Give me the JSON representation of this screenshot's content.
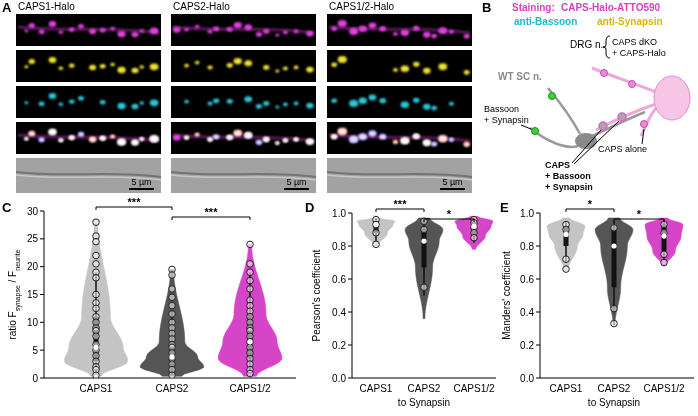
{
  "panel_a": {
    "label": "A",
    "columns": [
      "CAPS1-Halo",
      "CAPS2-Halo",
      "CAPS1/2-Halo"
    ],
    "scale_bar": "5 µm"
  },
  "panel_b": {
    "label": "B",
    "staining_title": "Staining:",
    "stains": [
      "CAPS-Halo-ATTO590",
      "anti-Bassoon",
      "anti-Synapsin"
    ],
    "drg": "DRG n.",
    "drg_desc": [
      "CAPS dKO",
      "+ CAPS-Halo"
    ],
    "wt": "WT SC n.",
    "label_bs": [
      "Bassoon",
      "+ Synapsin"
    ],
    "label_caps_alone": "CAPS alone",
    "label_all": [
      "CAPS",
      "+ Bassoon",
      "+ Synapsin"
    ]
  },
  "chart_data": [
    {
      "type": "violin",
      "title": "C",
      "y_label": [
        {
          "text": "ratio F"
        },
        {
          "text": "synapse",
          "sub": true
        },
        {
          "text": " / F"
        },
        {
          "text": "neurite",
          "sub": true
        }
      ],
      "ylim": [
        0,
        30
      ],
      "yticks": [
        0,
        5,
        10,
        15,
        20,
        25,
        30
      ],
      "series": [
        {
          "name": "CAPS1",
          "color": "#c4c4c4",
          "min": 0.3,
          "q1": 3,
          "median": 5.5,
          "q3": 11,
          "max": 28.5,
          "whisker": [
            0.8,
            19
          ],
          "density": [
            0.15,
            1,
            0.85,
            0.45,
            0.05
          ],
          "points": [
            28,
            25.5,
            24.5,
            22,
            20.5,
            19,
            18,
            15,
            13.5,
            12.5,
            11,
            10,
            9,
            8.5,
            7.5,
            6,
            5,
            4,
            3,
            2,
            1.5,
            0.5
          ]
        },
        {
          "name": "CAPS2",
          "color": "#555555",
          "min": 0.3,
          "q1": 2,
          "median": 3.8,
          "q3": 6.5,
          "max": 19.5,
          "whisker": [
            0.5,
            12
          ],
          "density": [
            0.3,
            1,
            0.8,
            0.4,
            0.05
          ],
          "points": [
            19.5,
            18.5,
            16,
            14.5,
            13,
            11.5,
            10,
            9,
            8,
            7,
            6,
            5.5,
            4.5,
            3.5,
            2.5,
            1.5,
            0.5
          ]
        },
        {
          "name": "CAPS1/2",
          "color": "#d645c8",
          "min": 0.3,
          "q1": 3.5,
          "median": 6.5,
          "q3": 11.5,
          "max": 24,
          "whisker": [
            0.8,
            19
          ],
          "density": [
            0.2,
            1,
            0.85,
            0.5,
            0.05
          ],
          "points": [
            24,
            20.5,
            19,
            17.5,
            16,
            14,
            13,
            12,
            11,
            10,
            9,
            8.5,
            7.5,
            6.5,
            5.5,
            4.5,
            3.5,
            2.5,
            1.5,
            0.8
          ]
        }
      ],
      "comparisons": [
        {
          "pair": [
            "CAPS1",
            "CAPS2"
          ],
          "label": "***"
        },
        {
          "pair": [
            "CAPS2",
            "CAPS1/2"
          ],
          "label": "***"
        }
      ]
    },
    {
      "type": "violin",
      "title": "D",
      "y_label": "Pearson's coefficient",
      "x_label": "to Synapsin",
      "ylim": [
        0,
        1
      ],
      "yticks": [
        {
          "value": 0,
          "label": "0.0"
        },
        0.2,
        0.4,
        0.6,
        0.8,
        {
          "value": 1,
          "label": "1.0"
        }
      ],
      "series": [
        {
          "name": "CAPS1",
          "color": "#c4c4c4",
          "min": 0.8,
          "q1": 0.88,
          "median": 0.93,
          "q3": 0.95,
          "max": 0.97,
          "whisker": [
            0.83,
            0.97
          ],
          "density": [
            0.1,
            0.6,
            0.9,
            1,
            0.2
          ],
          "points": [
            0.96,
            0.93,
            0.88,
            0.81
          ]
        },
        {
          "name": "CAPS2",
          "color": "#555555",
          "min": 0.36,
          "q1": 0.67,
          "median": 0.83,
          "q3": 0.9,
          "max": 0.97,
          "whisker": [
            0.5,
            0.96
          ],
          "density": [
            0.05,
            0.45,
            0.8,
            1,
            0.3
          ],
          "points": [
            0.95,
            0.9,
            0.55
          ]
        },
        {
          "name": "CAPS1/2",
          "color": "#d645c8",
          "min": 0.78,
          "q1": 0.86,
          "median": 0.92,
          "q3": 0.95,
          "max": 0.98,
          "whisker": [
            0.82,
            0.97
          ],
          "density": [
            0.1,
            0.6,
            0.9,
            1,
            0.2
          ],
          "points": [
            0.96,
            0.94,
            0.91,
            0.88,
            0.85
          ]
        }
      ],
      "comparisons": [
        {
          "pair": [
            "CAPS1",
            "CAPS2"
          ],
          "label": "***"
        },
        {
          "pair": [
            "CAPS2",
            "CAPS1/2"
          ],
          "label": "*"
        }
      ]
    },
    {
      "type": "violin",
      "title": "E",
      "y_label": "Manders' coefficient",
      "x_label": "to Synapsin",
      "ylim": [
        0,
        1
      ],
      "yticks": [
        {
          "value": 0,
          "label": "0.0"
        },
        0.2,
        0.4,
        0.6,
        0.8,
        {
          "value": 1,
          "label": "1.0"
        }
      ],
      "series": [
        {
          "name": "CAPS1",
          "color": "#c4c4c4",
          "min": 0.65,
          "q1": 0.8,
          "median": 0.87,
          "q3": 0.92,
          "max": 0.97,
          "whisker": [
            0.7,
            0.95
          ],
          "density": [
            0.1,
            0.6,
            0.9,
            1,
            0.2
          ],
          "points": [
            0.93,
            0.9,
            0.72,
            0.66
          ]
        },
        {
          "name": "CAPS2",
          "color": "#555555",
          "min": 0.32,
          "q1": 0.55,
          "median": 0.8,
          "q3": 0.9,
          "max": 0.97,
          "whisker": [
            0.4,
            0.95
          ],
          "density": [
            0.05,
            0.35,
            0.7,
            1,
            0.3
          ],
          "points": [
            0.91,
            0.42,
            0.33
          ]
        },
        {
          "name": "CAPS1/2",
          "color": "#d645c8",
          "min": 0.68,
          "q1": 0.77,
          "median": 0.86,
          "q3": 0.93,
          "max": 0.97,
          "whisker": [
            0.72,
            0.96
          ],
          "density": [
            0.1,
            0.6,
            0.9,
            1,
            0.2
          ],
          "points": [
            0.93,
            0.88,
            0.75,
            0.7
          ]
        }
      ],
      "comparisons": [
        {
          "pair": [
            "CAPS1",
            "CAPS2"
          ],
          "label": "*"
        },
        {
          "pair": [
            "CAPS2",
            "CAPS1/2"
          ],
          "label": "*"
        }
      ]
    }
  ]
}
